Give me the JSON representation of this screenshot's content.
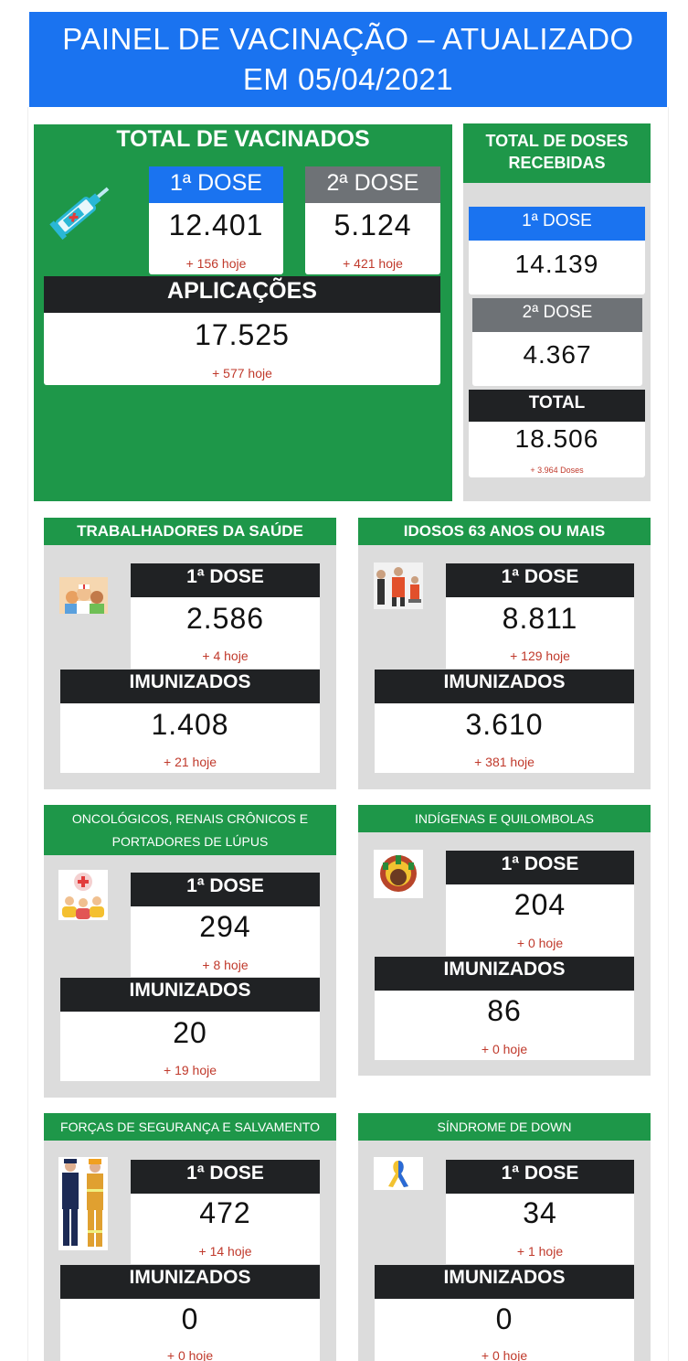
{
  "header": {
    "title_line1": "PAINEL DE VACINAÇÃO – ATUALIZADO",
    "title_line2": "EM 05/04/2021"
  },
  "total_vacinados": {
    "title": "TOTAL DE VACINADOS",
    "icon": "syringe-icon",
    "dose1": {
      "label": "1ª DOSE",
      "value": "12.401",
      "today": "+ 156 hoje"
    },
    "dose2": {
      "label": "2ª DOSE",
      "value": "5.124",
      "today": "+ 421 hoje"
    },
    "aplicacoes": {
      "label": "APLICAÇÕES",
      "value": "17.525",
      "today": "+ 577 hoje"
    }
  },
  "doses_recebidas": {
    "title_line1": "TOTAL DE DOSES",
    "title_line2": "RECEBIDAS",
    "dose1": {
      "label": "1ª DOSE",
      "value": "14.139"
    },
    "dose2": {
      "label": "2ª DOSE",
      "value": "4.367"
    },
    "total": {
      "label": "TOTAL",
      "value": "18.506",
      "today": "+ 3.964 Doses"
    }
  },
  "groups": [
    {
      "title": "TRABALHADORES DA SAÚDE",
      "icon": "health-workers-icon",
      "dose1_label": "1ª DOSE",
      "dose1_value": "2.586",
      "dose1_today": "+ 4 hoje",
      "imun_label": "IMUNIZADOS",
      "imun_value": "1.408",
      "imun_today": "+ 21 hoje"
    },
    {
      "title": "IDOSOS 63 ANOS OU MAIS",
      "icon": "elderly-icon",
      "dose1_label": "1ª DOSE",
      "dose1_value": "8.811",
      "dose1_today": "+ 129 hoje",
      "imun_label": "IMUNIZADOS",
      "imun_value": "3.610",
      "imun_today": "+ 381 hoje"
    },
    {
      "title_line1": "ONCOLÓGICOS, RENAIS CRÔNICOS E",
      "title_line2": "PORTADORES DE LÚPUS",
      "icon": "patients-icon",
      "dose1_label": "1ª DOSE",
      "dose1_value": "294",
      "dose1_today": "+ 8 hoje",
      "imun_label": "IMUNIZADOS",
      "imun_value": "20",
      "imun_today": "+ 19 hoje"
    },
    {
      "title": "INDÍGENAS E QUILOMBOLAS",
      "icon": "indigenous-icon",
      "dose1_label": "1ª DOSE",
      "dose1_value": "204",
      "dose1_today": "+ 0 hoje",
      "imun_label": "IMUNIZADOS",
      "imun_value": "86",
      "imun_today": "+ 0 hoje"
    },
    {
      "title": "FORÇAS DE SEGURANÇA E SALVAMENTO",
      "icon": "police-firefighter-icon",
      "dose1_label": "1ª DOSE",
      "dose1_value": "472",
      "dose1_today": "+ 14 hoje",
      "imun_label": "IMUNIZADOS",
      "imun_value": "0",
      "imun_today": "+ 0 hoje"
    },
    {
      "title": "SÍNDROME DE DOWN",
      "icon": "ribbon-icon",
      "dose1_label": "1ª DOSE",
      "dose1_value": "34",
      "dose1_today": "+ 1 hoje",
      "imun_label": "IMUNIZADOS",
      "imun_value": "0",
      "imun_today": "+ 0 hoje"
    }
  ],
  "colors": {
    "blue": "#1a73f0",
    "green": "#1e9749",
    "dark": "#202224",
    "gray": "#6e7276",
    "panel_gray": "#dcdcdc",
    "today_red": "#c0392b"
  }
}
